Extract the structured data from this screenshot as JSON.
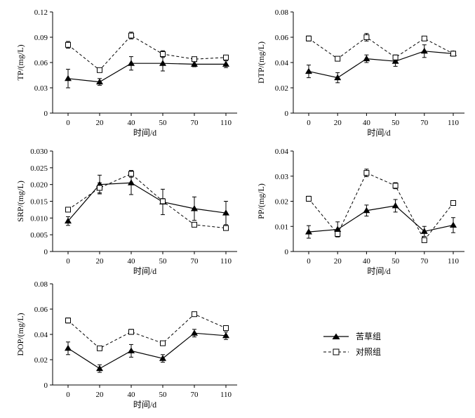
{
  "legend": {
    "items": [
      {
        "label": "苦草组",
        "marker": "filled-triangle",
        "line": "solid"
      },
      {
        "label": "对照组",
        "marker": "open-square",
        "line": "dashed"
      }
    ]
  },
  "colors": {
    "line": "#000000",
    "background": "#ffffff"
  },
  "chart_data": [
    {
      "type": "line",
      "ylabel": "TP/(mg/L)",
      "xlabel": "时间/d",
      "categories": [
        "0",
        "20",
        "40",
        "50",
        "70",
        "110"
      ],
      "ylim": [
        0,
        0.12
      ],
      "yticks": [
        "0",
        "0.03",
        "0.06",
        "0.09",
        "0.12"
      ],
      "series": [
        {
          "name": "苦草组",
          "values": [
            0.041,
            0.037,
            0.059,
            0.059,
            0.058,
            0.058
          ],
          "errors": [
            0.011,
            0.004,
            0.008,
            0.009,
            0.003,
            0.004
          ]
        },
        {
          "name": "对照组",
          "values": [
            0.081,
            0.051,
            0.092,
            0.07,
            0.064,
            0.066
          ],
          "errors": [
            0.004,
            0.002,
            0.004,
            0.004,
            0.002,
            0.002
          ]
        }
      ]
    },
    {
      "type": "line",
      "ylabel": "DTP/(mg/L)",
      "xlabel": "时间/d",
      "categories": [
        "0",
        "20",
        "40",
        "50",
        "70",
        "110"
      ],
      "ylim": [
        0,
        0.08
      ],
      "yticks": [
        "0",
        "0.02",
        "0.04",
        "0.06",
        "0.08"
      ],
      "series": [
        {
          "name": "苦草组",
          "values": [
            0.033,
            0.028,
            0.043,
            0.041,
            0.049,
            0.047
          ],
          "errors": [
            0.005,
            0.004,
            0.003,
            0.004,
            0.005,
            0.002
          ]
        },
        {
          "name": "对照组",
          "values": [
            0.059,
            0.043,
            0.06,
            0.044,
            0.059,
            0.047
          ],
          "errors": [
            0.002,
            0.001,
            0.003,
            0.002,
            0.001,
            0.001
          ]
        }
      ]
    },
    {
      "type": "line",
      "ylabel": "SRP/(mg/L)",
      "xlabel": "时间/d",
      "categories": [
        "0",
        "20",
        "40",
        "50",
        "70",
        "110"
      ],
      "ylim": [
        0,
        0.03
      ],
      "yticks": [
        "0",
        "0.005",
        "0.010",
        "0.015",
        "0.020",
        "0.025",
        "0.030"
      ],
      "series": [
        {
          "name": "苦草组",
          "values": [
            0.0091,
            0.02,
            0.0205,
            0.0148,
            0.0128,
            0.0115
          ],
          "errors": [
            0.0013,
            0.0028,
            0.0035,
            0.0038,
            0.0035,
            0.0035
          ]
        },
        {
          "name": "对照组",
          "values": [
            0.0125,
            0.019,
            0.0232,
            0.015,
            0.008,
            0.007
          ],
          "errors": [
            0.0004,
            0.0015,
            0.001,
            0.0008,
            0.0003,
            0.0003
          ]
        }
      ]
    },
    {
      "type": "line",
      "ylabel": "PP/(mg/L)",
      "xlabel": "时间/d",
      "categories": [
        "0",
        "20",
        "40",
        "50",
        "70",
        "110"
      ],
      "ylim": [
        0,
        0.04
      ],
      "yticks": [
        "0",
        "0.01",
        "0.02",
        "0.03",
        "0.04"
      ],
      "series": [
        {
          "name": "苦草组",
          "values": [
            0.0078,
            0.0088,
            0.0163,
            0.0182,
            0.008,
            0.0105
          ],
          "errors": [
            0.0025,
            0.003,
            0.0022,
            0.0025,
            0.002,
            0.003
          ]
        },
        {
          "name": "对照组",
          "values": [
            0.021,
            0.007,
            0.0313,
            0.0262,
            0.0045,
            0.0193
          ],
          "errors": [
            0.001,
            0.001,
            0.0015,
            0.0012,
            0.0005,
            0.0005
          ]
        }
      ]
    },
    {
      "type": "line",
      "ylabel": "DOP/(mg/L)",
      "xlabel": "时间/d",
      "categories": [
        "0",
        "20",
        "40",
        "50",
        "70",
        "110"
      ],
      "ylim": [
        0,
        0.08
      ],
      "yticks": [
        "0",
        "0.02",
        "0.04",
        "0.06",
        "0.08"
      ],
      "series": [
        {
          "name": "苦草组",
          "values": [
            0.029,
            0.013,
            0.027,
            0.021,
            0.041,
            0.039
          ],
          "errors": [
            0.005,
            0.003,
            0.005,
            0.003,
            0.003,
            0.003
          ]
        },
        {
          "name": "对照组",
          "values": [
            0.051,
            0.029,
            0.042,
            0.033,
            0.056,
            0.045
          ],
          "errors": [
            0.002,
            0.001,
            0.002,
            0.001,
            0.001,
            0.001
          ]
        }
      ]
    }
  ]
}
